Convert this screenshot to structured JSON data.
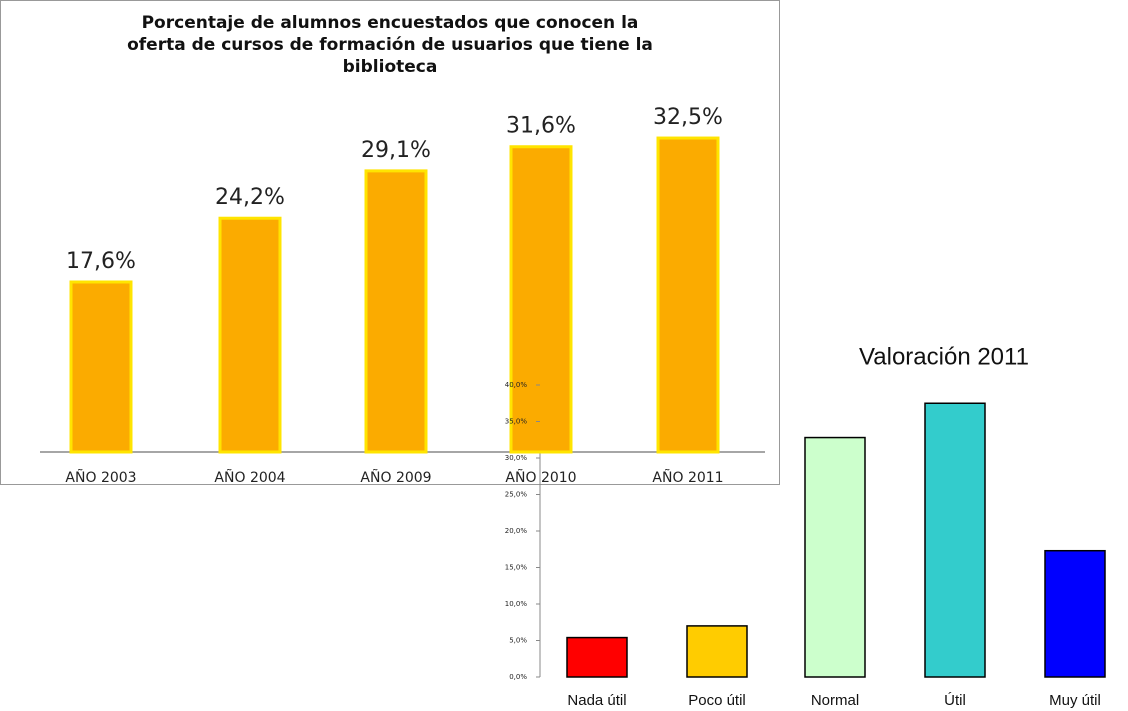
{
  "chart_data": [
    {
      "type": "bar",
      "title": "Porcentaje de alumnos encuestados que conocen la oferta de cursos de formación de usuarios que tiene la biblioteca",
      "categories": [
        "AÑO 2003",
        "AÑO 2004",
        "AÑO 2009",
        "AÑO 2010",
        "AÑO 2011"
      ],
      "values": [
        17.6,
        24.2,
        29.1,
        31.6,
        32.5
      ],
      "value_labels": [
        "17,6%",
        "24,2%",
        "29,1%",
        "31,6%",
        "32,5%"
      ],
      "color": "#fbab00"
    },
    {
      "type": "bar",
      "title": "Valoración 2011",
      "categories": [
        "Nada útil",
        "Poco útil",
        "Normal",
        "Útil",
        "Muy útil"
      ],
      "values": [
        5.4,
        7.0,
        32.8,
        37.5,
        17.3
      ],
      "colors": [
        "#ff0000",
        "#ffcc00",
        "#ccffcc",
        "#33cccc",
        "#0000ff"
      ],
      "ylim": [
        0,
        40
      ],
      "yticks": [
        {
          "value": 0,
          "label": "0,0%"
        },
        {
          "value": 5,
          "label": "5,0%"
        },
        {
          "value": 10,
          "label": "10,0%"
        },
        {
          "value": 15,
          "label": "15,0%"
        },
        {
          "value": 20,
          "label": "20,0%"
        },
        {
          "value": 25,
          "label": "25,0%"
        },
        {
          "value": 30,
          "label": "30,0%"
        },
        {
          "value": 35,
          "label": "35,0%"
        },
        {
          "value": 40,
          "label": "40,0%"
        }
      ]
    }
  ]
}
